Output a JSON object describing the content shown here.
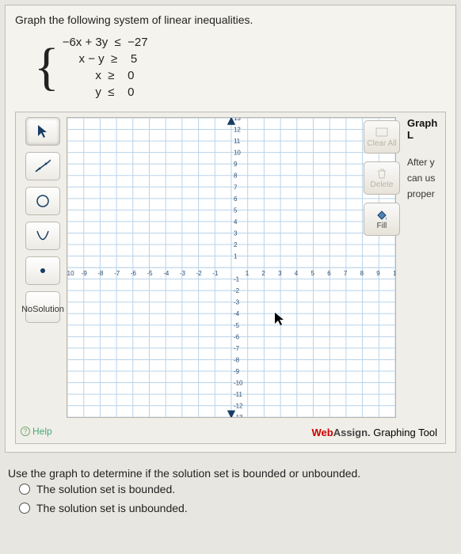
{
  "problem": {
    "prompt": "Graph the following system of linear inequalities.",
    "equations": [
      "−6x + 3y  ≤  −27",
      "     x − y  ≥    5",
      "          x  ≥    0",
      "          y  ≤    0"
    ]
  },
  "toolbar": {
    "pointer": "pointer-tool",
    "line": "line-tool",
    "circle": "circle-tool",
    "parabola": "parabola-tool",
    "point": "point-tool",
    "no_solution_l1": "No",
    "no_solution_l2": "Solution",
    "help": "Help"
  },
  "grid": {
    "xmin": -10,
    "xmax": 10,
    "ymin": -13,
    "ymax": 13,
    "bg": "#ffffff",
    "grid_color": "#b9d3e9",
    "axis_color": "#173d64",
    "tick_font": 8
  },
  "right": {
    "clear": "Clear All",
    "delete": "Delete",
    "fill": "Fill"
  },
  "side": {
    "title": "Graph L",
    "l1": "After y",
    "l2": "can us",
    "l3": "proper"
  },
  "attribution": {
    "brand1": "Web",
    "brand2": "Assign.",
    "tail": " Graphing Tool"
  },
  "followup": {
    "q": "Use the graph to determine if the solution set is bounded or unbounded.",
    "a": "The solution set is bounded.",
    "b": "The solution set is unbounded."
  }
}
